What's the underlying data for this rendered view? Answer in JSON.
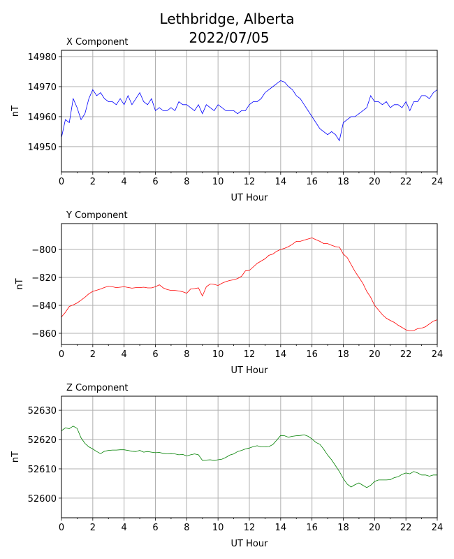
{
  "chart_data": {
    "type": "line",
    "title": [
      "Lethbridge, Alberta",
      "2022/07/05"
    ],
    "grid": true,
    "panels": [
      {
        "title": "X Component",
        "xlabel": "UT Hour",
        "ylabel": "nT",
        "color": "#0000ff",
        "xlim": [
          0,
          24
        ],
        "ylim": [
          14941.6,
          14982.1
        ],
        "xticks": [
          0,
          2,
          4,
          6,
          8,
          10,
          12,
          14,
          16,
          18,
          20,
          22,
          24
        ],
        "yticks": [
          14950,
          14960,
          14970,
          14980
        ],
        "x_step": 0.25,
        "values": [
          14953,
          14959,
          14958,
          14966,
          14963,
          14959,
          14961,
          14966,
          14969,
          14967,
          14968,
          14966,
          14965,
          14965,
          14964,
          14966,
          14964,
          14967,
          14964,
          14966,
          14968,
          14965,
          14964,
          14966,
          14962,
          14963,
          14962,
          14962,
          14963,
          14962,
          14965,
          14964,
          14964,
          14963,
          14962,
          14964,
          14961,
          14964,
          14963,
          14962,
          14964,
          14963,
          14962,
          14962,
          14962,
          14961,
          14962,
          14962,
          14964,
          14965,
          14965,
          14966,
          14968,
          14969,
          14970,
          14971,
          14972,
          14971.5,
          14970,
          14969,
          14967,
          14966,
          14964,
          14962,
          14960,
          14958,
          14956,
          14955,
          14954,
          14955,
          14954,
          14952,
          14958,
          14959,
          14960,
          14960,
          14961,
          14962,
          14963,
          14967,
          14965,
          14965,
          14964,
          14965,
          14963,
          14964,
          14964,
          14963,
          14965,
          14962,
          14965,
          14965,
          14967,
          14967,
          14966,
          14968,
          14969
        ]
      },
      {
        "title": "Y Component",
        "xlabel": "UT Hour",
        "ylabel": "nT",
        "color": "#ff0000",
        "xlim": [
          0,
          24
        ],
        "ylim": [
          -868,
          -781.5
        ],
        "xticks": [
          0,
          2,
          4,
          6,
          8,
          10,
          12,
          14,
          16,
          18,
          20,
          22,
          24
        ],
        "yticks": [
          -800,
          -820,
          -840,
          -860
        ],
        "x_step": 0.25,
        "values": [
          -848.3,
          -845,
          -840.8,
          -839.7,
          -838.3,
          -836.3,
          -834.2,
          -831.7,
          -830,
          -829.2,
          -828.3,
          -827.2,
          -826.3,
          -826.7,
          -827.3,
          -827,
          -826.7,
          -827.2,
          -827.7,
          -827.3,
          -827.3,
          -827,
          -827.5,
          -827.5,
          -826.7,
          -825.3,
          -827.5,
          -828.7,
          -829.3,
          -829.3,
          -829.7,
          -830.3,
          -831.3,
          -828.3,
          -828,
          -827.5,
          -833.3,
          -826.7,
          -824.7,
          -825,
          -825.8,
          -824.2,
          -823,
          -822.2,
          -821.7,
          -820.8,
          -819.2,
          -815.3,
          -815,
          -812.5,
          -810,
          -808.3,
          -806.7,
          -804.2,
          -803.3,
          -801.3,
          -800,
          -799.2,
          -798,
          -796.3,
          -794.2,
          -794.2,
          -793.3,
          -792.5,
          -791.7,
          -793,
          -794.2,
          -795.8,
          -795.8,
          -797,
          -798,
          -798.3,
          -803.3,
          -805.8,
          -810.8,
          -815.8,
          -820,
          -824.2,
          -830,
          -834.2,
          -840,
          -843.3,
          -846.7,
          -849.2,
          -850.8,
          -852.2,
          -854.2,
          -855.8,
          -857.5,
          -858.3,
          -858,
          -856.7,
          -856.3,
          -855.3,
          -853.3,
          -851.3,
          -850.3
        ]
      },
      {
        "title": "Z Component",
        "xlabel": "UT Hour",
        "ylabel": "nT",
        "color": "#008000",
        "xlim": [
          0,
          24
        ],
        "ylim": [
          52593.3,
          52634.8
        ],
        "xticks": [
          0,
          2,
          4,
          6,
          8,
          10,
          12,
          14,
          16,
          18,
          20,
          22,
          24
        ],
        "yticks": [
          52600,
          52610,
          52620,
          52630
        ],
        "x_step": 0.25,
        "values": [
          52623.0,
          52624.0,
          52623.7,
          52624.6,
          52623.8,
          52620.6,
          52618.7,
          52617.5,
          52616.8,
          52615.9,
          52615.2,
          52616.0,
          52616.3,
          52616.4,
          52616.4,
          52616.5,
          52616.5,
          52616.3,
          52616.0,
          52615.9,
          52616.3,
          52615.7,
          52615.9,
          52615.7,
          52615.5,
          52615.6,
          52615.3,
          52615.1,
          52615.2,
          52615.1,
          52614.8,
          52614.9,
          52614.4,
          52614.8,
          52615.1,
          52614.8,
          52612.9,
          52613.0,
          52613.1,
          52612.9,
          52613.1,
          52613.3,
          52613.9,
          52614.7,
          52615.1,
          52615.9,
          52616.3,
          52616.8,
          52617.1,
          52617.6,
          52617.9,
          52617.5,
          52617.5,
          52617.6,
          52618.3,
          52619.8,
          52621.4,
          52621.3,
          52620.8,
          52621.1,
          52621.3,
          52621.4,
          52621.6,
          52621.1,
          52620.2,
          52619.0,
          52618.4,
          52616.7,
          52614.7,
          52613.1,
          52611.1,
          52609.1,
          52606.7,
          52604.8,
          52603.8,
          52604.6,
          52605.2,
          52604.4,
          52603.6,
          52604.4,
          52605.7,
          52606.2,
          52606.2,
          52606.2,
          52606.3,
          52607.0,
          52607.3,
          52608.1,
          52608.6,
          52608.3,
          52609.1,
          52608.6,
          52607.9,
          52607.9,
          52607.5,
          52607.9,
          52607.9
        ]
      }
    ]
  }
}
